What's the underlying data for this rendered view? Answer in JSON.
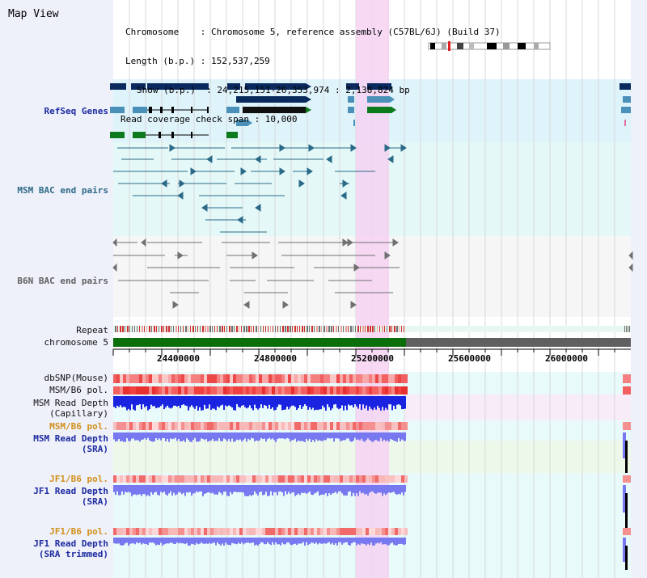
{
  "header": {
    "title": "Map View",
    "chromosome_line": "Chromosome    : Chromosome 5, reference assembly (C57BL/6J) (Build 37)",
    "length_line": "Length (b.p.) : 152,537,259",
    "show_line": "Show (b.p.)  : 24,215,151-26,353,974 : 2,138,824 bp",
    "span_line": "Read coverage check span : 10,000"
  },
  "tracks": {
    "refseq": "RefSeq Genes",
    "msm_bac": "MSM BAC end pairs",
    "b6n_bac": "B6N BAC end pairs",
    "repeat": "Repeat",
    "chromosome": "chromosome 5",
    "dbsnp": "dbSNP(Mouse)",
    "msm_b6_pol_1": "MSM/B6 pol.",
    "msm_depth_cap_1": "MSM Read Depth",
    "msm_depth_cap_2": "(Capillary)",
    "msm_b6_pol_2": "MSM/B6 pol.",
    "msm_depth_sra_1": "MSM Read Depth",
    "msm_depth_sra_2": "(SRA)",
    "jf1_pol_1": "JF1/B6 pol.",
    "jf1_depth_1": "JF1 Read Depth",
    "jf1_depth_2": "(SRA)",
    "jf1_pol_2": "JF1/B6 pol.",
    "jf1_trim_1": "JF1 Read Depth",
    "jf1_trim_2": "(SRA trimmed)"
  },
  "axis": {
    "ticks": [
      "24400000",
      "24800000",
      "25200000",
      "25600000",
      "26000000"
    ]
  },
  "colors": {
    "refseq_dark": "#0a2a5e",
    "refseq_mid": "#4a90b8",
    "refseq_green": "#0e7a1e",
    "bac_teal": "#2a6a88",
    "bac_gray": "#707070",
    "chromosome_green": "#0a6e0a",
    "highlight": "#f6d8f6",
    "depth_blue": "#1a24e0",
    "depth_light": "#7878f0",
    "snp_red": "#f05050"
  }
}
